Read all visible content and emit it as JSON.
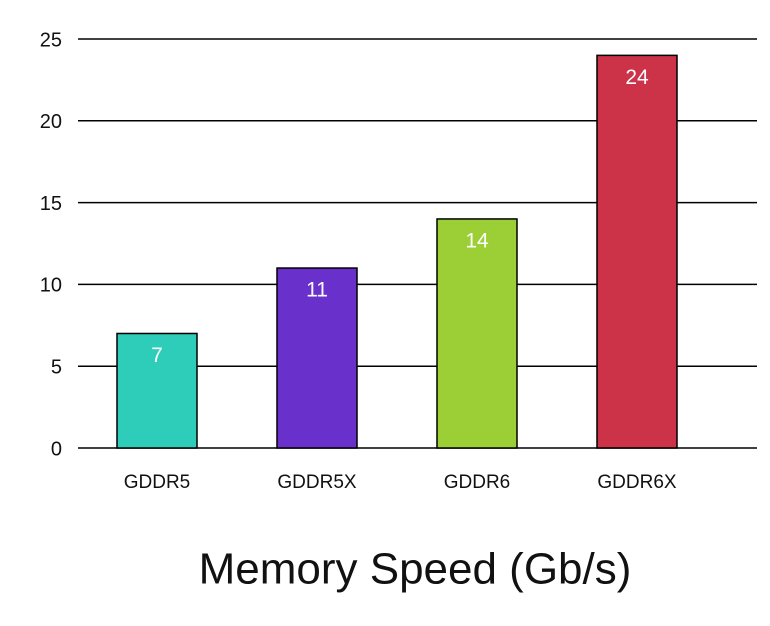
{
  "chart_data": {
    "type": "bar",
    "title": "Memory Speed (Gb/s)",
    "categories": [
      "GDDR5",
      "GDDR5X",
      "GDDR6",
      "GDDR6X"
    ],
    "values": [
      7,
      11,
      14,
      24
    ],
    "colors": [
      "#2ecdb9",
      "#6a30cc",
      "#9bcf35",
      "#cc3348"
    ],
    "ylim": [
      0,
      25
    ],
    "yticks": [
      0,
      5,
      10,
      15,
      20,
      25
    ],
    "grid": true
  }
}
